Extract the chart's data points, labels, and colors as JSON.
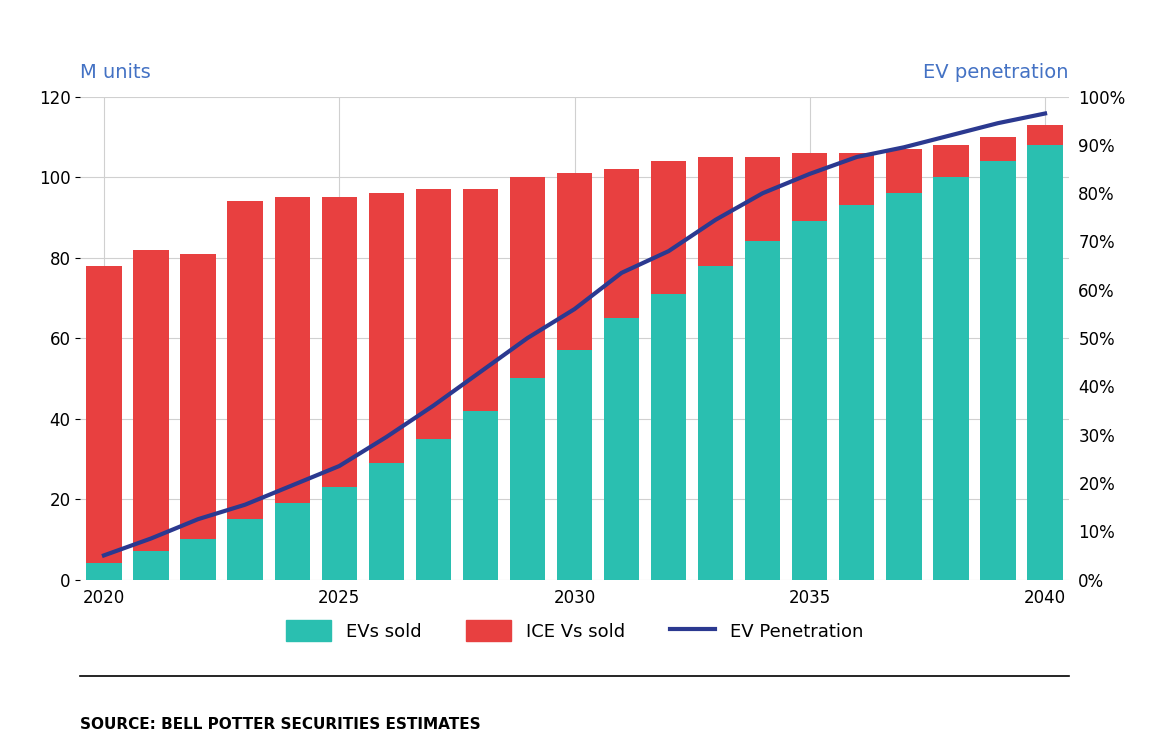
{
  "years": [
    2020,
    2021,
    2022,
    2023,
    2024,
    2025,
    2026,
    2027,
    2028,
    2029,
    2030,
    2031,
    2032,
    2033,
    2034,
    2035,
    2036,
    2037,
    2038,
    2039,
    2040
  ],
  "evs_sold": [
    4,
    7,
    10,
    15,
    19,
    23,
    29,
    35,
    42,
    50,
    57,
    65,
    71,
    78,
    84,
    89,
    93,
    96,
    100,
    104,
    108
  ],
  "ice_sold": [
    74,
    75,
    71,
    79,
    76,
    72,
    67,
    62,
    55,
    50,
    44,
    37,
    33,
    27,
    21,
    17,
    13,
    11,
    8,
    6,
    5
  ],
  "ev_penetration": [
    0.05,
    0.085,
    0.125,
    0.155,
    0.195,
    0.235,
    0.295,
    0.36,
    0.43,
    0.5,
    0.56,
    0.635,
    0.68,
    0.745,
    0.8,
    0.84,
    0.875,
    0.895,
    0.92,
    0.945,
    0.965
  ],
  "ev_color": "#2abfb0",
  "ice_color": "#e84040",
  "line_color": "#2b3990",
  "left_label": "M units",
  "right_label": "EV penetration",
  "source_text": "SOURCE: BELL POTTER SECURITIES ESTIMATES",
  "legend_labels": [
    "EVs sold",
    "ICE Vs sold",
    "EV Penetration"
  ],
  "ylim_left": [
    0,
    120
  ],
  "ylim_right": [
    0,
    1.0
  ],
  "yticks_left": [
    0,
    20,
    40,
    60,
    80,
    100,
    120
  ],
  "yticks_right": [
    0.0,
    0.1,
    0.2,
    0.3,
    0.4,
    0.5,
    0.6,
    0.7,
    0.8,
    0.9,
    1.0
  ],
  "xticks": [
    2020,
    2025,
    2030,
    2035,
    2040
  ],
  "xlim": [
    2019.5,
    2040.5
  ],
  "bar_width": 0.75,
  "background_color": "#ffffff",
  "grid_color": "#d0d0d0",
  "label_fontsize": 14,
  "tick_fontsize": 12,
  "source_fontsize": 11,
  "legend_fontsize": 13
}
